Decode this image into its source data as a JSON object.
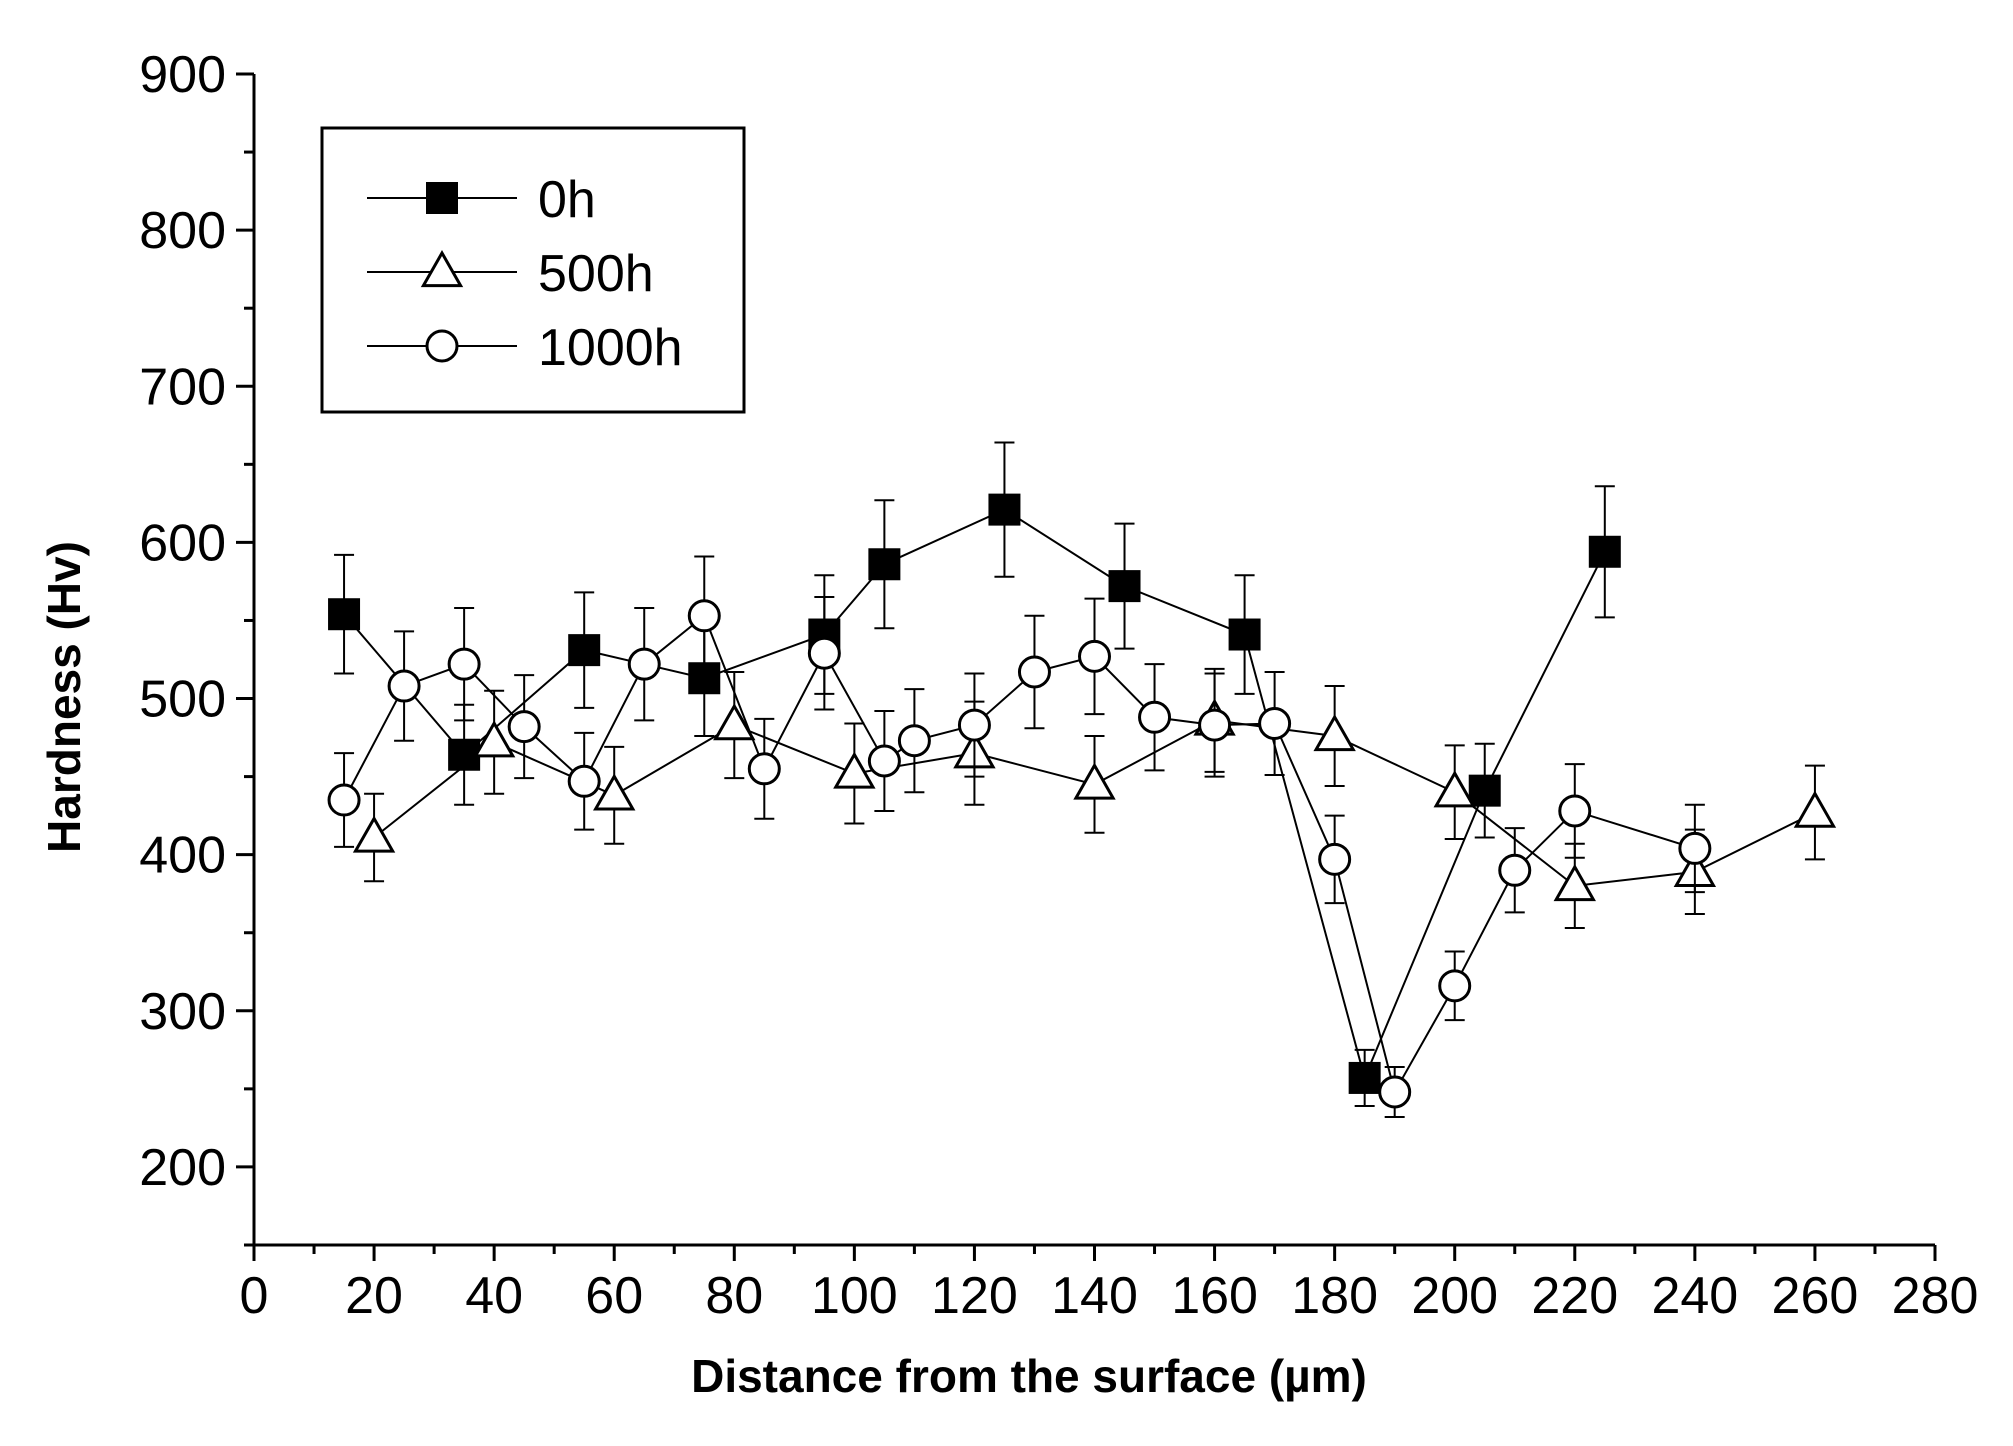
{
  "chart_data": {
    "type": "line",
    "title": "",
    "xlabel": "Distance from the surface (µm)",
    "ylabel": "Hardness (Hv)",
    "xlim": [
      0,
      280
    ],
    "ylim": [
      150,
      900
    ],
    "xticks": [
      0,
      20,
      40,
      60,
      80,
      100,
      120,
      140,
      160,
      180,
      200,
      220,
      240,
      260,
      280
    ],
    "yticks": [
      200,
      300,
      400,
      500,
      600,
      700,
      800,
      900
    ],
    "grid": false,
    "legend_position": "top-left",
    "series": [
      {
        "name": "0h",
        "marker": "filled-square",
        "x": [
          15,
          35,
          55,
          75,
          95,
          105,
          125,
          145,
          165,
          185,
          205,
          225
        ],
        "y": [
          554,
          464,
          531,
          513,
          541,
          586,
          621,
          572,
          541,
          257,
          441,
          594
        ],
        "err": [
          38,
          32,
          37,
          37,
          38,
          41,
          43,
          40,
          38,
          18,
          30,
          42
        ]
      },
      {
        "name": "500h",
        "marker": "open-triangle",
        "x": [
          20,
          40,
          60,
          80,
          100,
          120,
          140,
          160,
          180,
          200,
          220,
          240,
          260
        ],
        "y": [
          411,
          472,
          438,
          483,
          452,
          465,
          445,
          486,
          476,
          440,
          380,
          389,
          427
        ],
        "err": [
          28,
          33,
          31,
          34,
          32,
          33,
          31,
          33,
          32,
          30,
          27,
          27,
          30
        ]
      },
      {
        "name": "1000h",
        "marker": "open-circle",
        "x": [
          15,
          25,
          35,
          45,
          55,
          65,
          75,
          85,
          95,
          105,
          110,
          120,
          130,
          140,
          150,
          160,
          170,
          180,
          190,
          200,
          210,
          220,
          240
        ],
        "y": [
          435,
          508,
          522,
          482,
          447,
          522,
          553,
          455,
          529,
          460,
          473,
          483,
          517,
          527,
          488,
          483,
          484,
          397,
          248,
          316,
          390,
          428,
          404
        ],
        "err": [
          30,
          35,
          36,
          33,
          31,
          36,
          38,
          32,
          36,
          32,
          33,
          33,
          36,
          37,
          34,
          33,
          33,
          28,
          16,
          22,
          27,
          30,
          28
        ]
      }
    ]
  }
}
